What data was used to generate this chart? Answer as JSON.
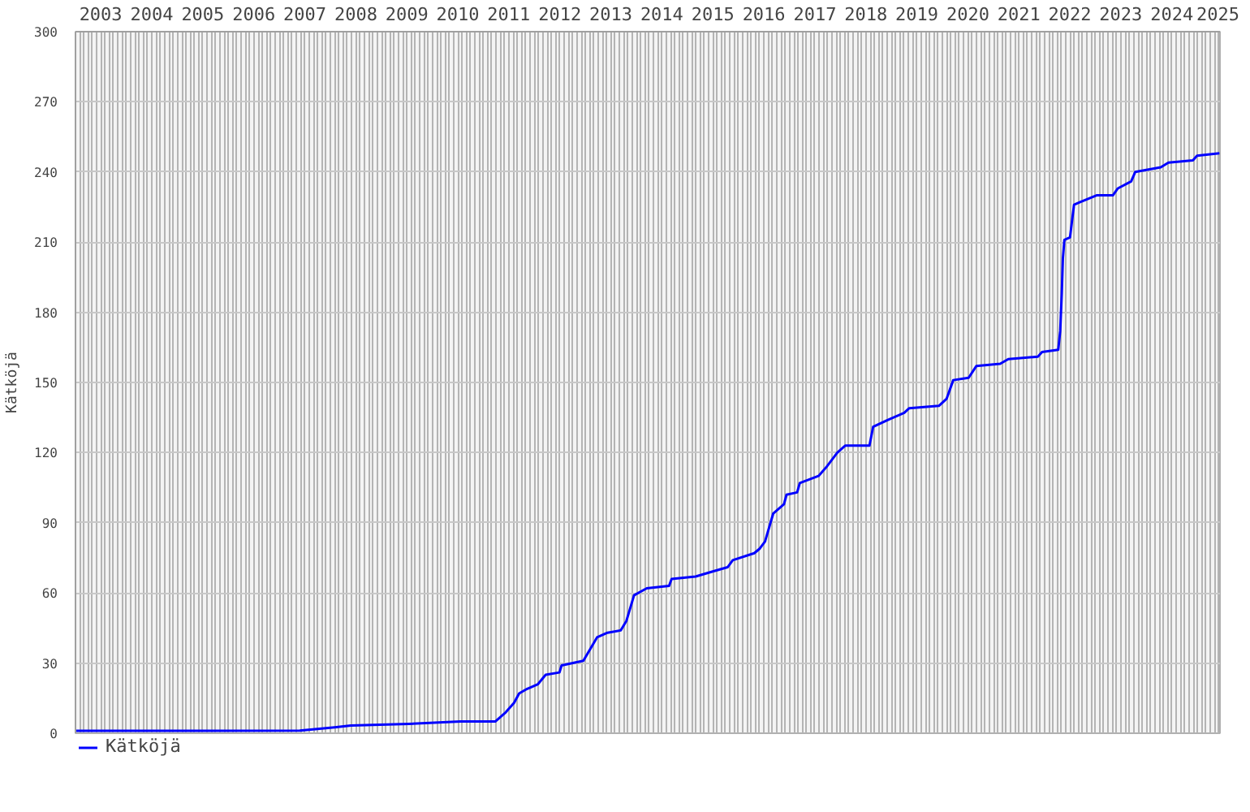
{
  "chart_data": {
    "type": "line",
    "ylabel": "Kätköjä",
    "x": [
      "2003-01-01",
      "2005-07-01",
      "2007-05-26",
      "2008-01-30",
      "2008-05-26",
      "2009-07-16",
      "2010-07-20",
      "2011-03-26",
      "2011-06-10",
      "2011-08-08",
      "2011-09-13",
      "2011-11-10",
      "2012-01-26",
      "2012-03-21",
      "2012-06-28",
      "2012-07-13",
      "2012-12-16",
      "2013-03-24",
      "2013-06-07",
      "2013-09-10",
      "2013-10-20",
      "2013-12-14",
      "2014-03-15",
      "2014-08-22",
      "2014-09-09",
      "2015-02-28",
      "2015-06-21",
      "2015-10-15",
      "2015-11-21",
      "2016-04-23",
      "2016-06-02",
      "2016-07-09",
      "2016-09-06",
      "2016-11-22",
      "2016-12-10",
      "2017-02-24",
      "2017-03-15",
      "2017-07-27",
      "2017-09-24",
      "2017-12-09",
      "2018-02-03",
      "2018-07-27",
      "2018-08-22",
      "2018-12-06",
      "2019-04-02",
      "2019-05-08",
      "2019-12-06",
      "2020-01-30",
      "2020-03-18",
      "2020-07-06",
      "2020-08-30",
      "2021-02-17",
      "2021-04-16",
      "2021-11-14",
      "2021-12-14",
      "2022-04-09",
      "2022-04-23",
      "2022-05-04",
      "2022-05-12",
      "2022-05-23",
      "2022-07-02",
      "2022-07-31",
      "2022-09-09",
      "2023-01-08",
      "2023-05-05",
      "2023-06-10",
      "2023-09-13",
      "2023-10-12",
      "2024-04-12",
      "2024-06-06",
      "2024-11-28",
      "2024-12-28",
      "2025-06-06"
    ],
    "series": [
      {
        "name": "Kätköjä",
        "color": "#0000ff",
        "values": [
          1,
          1,
          1.1,
          2.5,
          3.3,
          4,
          5,
          5,
          9,
          13,
          17,
          19,
          21,
          25,
          26,
          29,
          31,
          41,
          43,
          44,
          48,
          59,
          62,
          63,
          66,
          67,
          69,
          71,
          74,
          77,
          79,
          82,
          94,
          98,
          102,
          103,
          107,
          110,
          114,
          120,
          123,
          123,
          131,
          134,
          137,
          139,
          140,
          143,
          151,
          152,
          157,
          158,
          160,
          161,
          163,
          164,
          172,
          188,
          203,
          211,
          212,
          226,
          227,
          230,
          230,
          233,
          236,
          240,
          242,
          244,
          245,
          247,
          248
        ]
      }
    ],
    "xlim": [
      "2003-01-01",
      "2025-06-10"
    ],
    "ylim": [
      0,
      300
    ],
    "yticks": [
      0,
      30,
      60,
      90,
      120,
      150,
      180,
      210,
      240,
      270,
      300
    ],
    "xticks": [
      {
        "value": "2003-01",
        "label": null
      },
      {
        "value": "2003-02",
        "label": null
      },
      {
        "value": "2003-03",
        "label": null
      },
      {
        "value": "2003-04",
        "label": null
      },
      {
        "value": "2003-05",
        "label": null
      },
      {
        "value": "2003-06",
        "label": null
      },
      {
        "value": "2003-07",
        "label": "2003"
      },
      {
        "value": "2003-08",
        "label": null
      },
      {
        "value": "2003-09",
        "label": null
      },
      {
        "value": "2003-10",
        "label": null
      },
      {
        "value": "2003-11",
        "label": null
      },
      {
        "value": "2003-12",
        "label": null
      },
      {
        "value": "2004-01",
        "label": null
      },
      {
        "value": "2004-02",
        "label": null
      },
      {
        "value": "2004-03",
        "label": null
      },
      {
        "value": "2004-04",
        "label": null
      },
      {
        "value": "2004-05",
        "label": null
      },
      {
        "value": "2004-06",
        "label": null
      },
      {
        "value": "2004-07",
        "label": "2004"
      },
      {
        "value": "2004-08",
        "label": null
      },
      {
        "value": "2004-09",
        "label": null
      },
      {
        "value": "2004-10",
        "label": null
      },
      {
        "value": "2004-11",
        "label": null
      },
      {
        "value": "2004-12",
        "label": null
      },
      {
        "value": "2005-01",
        "label": null
      },
      {
        "value": "2005-02",
        "label": null
      },
      {
        "value": "2005-03",
        "label": null
      },
      {
        "value": "2005-04",
        "label": null
      },
      {
        "value": "2005-05",
        "label": null
      },
      {
        "value": "2005-06",
        "label": null
      },
      {
        "value": "2005-07",
        "label": "2005"
      },
      {
        "value": "2005-08",
        "label": null
      },
      {
        "value": "2005-09",
        "label": null
      },
      {
        "value": "2005-10",
        "label": null
      },
      {
        "value": "2005-11",
        "label": null
      },
      {
        "value": "2005-12",
        "label": null
      },
      {
        "value": "2006-01",
        "label": null
      },
      {
        "value": "2006-02",
        "label": null
      },
      {
        "value": "2006-03",
        "label": null
      },
      {
        "value": "2006-04",
        "label": null
      },
      {
        "value": "2006-05",
        "label": null
      },
      {
        "value": "2006-06",
        "label": null
      },
      {
        "value": "2006-07",
        "label": "2006"
      },
      {
        "value": "2006-08",
        "label": null
      },
      {
        "value": "2006-09",
        "label": null
      },
      {
        "value": "2006-10",
        "label": null
      },
      {
        "value": "2006-11",
        "label": null
      },
      {
        "value": "2006-12",
        "label": null
      },
      {
        "value": "2007-01",
        "label": null
      },
      {
        "value": "2007-02",
        "label": null
      },
      {
        "value": "2007-03",
        "label": null
      },
      {
        "value": "2007-04",
        "label": null
      },
      {
        "value": "2007-05",
        "label": null
      },
      {
        "value": "2007-06",
        "label": null
      },
      {
        "value": "2007-07",
        "label": "2007"
      },
      {
        "value": "2007-08",
        "label": null
      },
      {
        "value": "2007-09",
        "label": null
      },
      {
        "value": "2007-10",
        "label": null
      },
      {
        "value": "2007-11",
        "label": null
      },
      {
        "value": "2007-12",
        "label": null
      },
      {
        "value": "2008-01",
        "label": null
      },
      {
        "value": "2008-02",
        "label": null
      },
      {
        "value": "2008-03",
        "label": null
      },
      {
        "value": "2008-04",
        "label": null
      },
      {
        "value": "2008-05",
        "label": null
      },
      {
        "value": "2008-06",
        "label": null
      },
      {
        "value": "2008-07",
        "label": "2008"
      },
      {
        "value": "2008-08",
        "label": null
      },
      {
        "value": "2008-09",
        "label": null
      },
      {
        "value": "2008-10",
        "label": null
      },
      {
        "value": "2008-11",
        "label": null
      },
      {
        "value": "2008-12",
        "label": null
      },
      {
        "value": "2009-01",
        "label": null
      },
      {
        "value": "2009-02",
        "label": null
      },
      {
        "value": "2009-03",
        "label": null
      },
      {
        "value": "2009-04",
        "label": null
      },
      {
        "value": "2009-05",
        "label": null
      },
      {
        "value": "2009-06",
        "label": null
      },
      {
        "value": "2009-07",
        "label": "2009"
      },
      {
        "value": "2009-08",
        "label": null
      },
      {
        "value": "2009-09",
        "label": null
      },
      {
        "value": "2009-10",
        "label": null
      },
      {
        "value": "2009-11",
        "label": null
      },
      {
        "value": "2009-12",
        "label": null
      },
      {
        "value": "2010-01",
        "label": null
      },
      {
        "value": "2010-02",
        "label": null
      },
      {
        "value": "2010-03",
        "label": null
      },
      {
        "value": "2010-04",
        "label": null
      },
      {
        "value": "2010-05",
        "label": null
      },
      {
        "value": "2010-06",
        "label": null
      },
      {
        "value": "2010-07",
        "label": "2010"
      },
      {
        "value": "2010-08",
        "label": null
      },
      {
        "value": "2010-09",
        "label": null
      },
      {
        "value": "2010-10",
        "label": null
      },
      {
        "value": "2010-11",
        "label": null
      },
      {
        "value": "2010-12",
        "label": null
      },
      {
        "value": "2011-01",
        "label": null
      },
      {
        "value": "2011-02",
        "label": null
      },
      {
        "value": "2011-03",
        "label": null
      },
      {
        "value": "2011-04",
        "label": null
      },
      {
        "value": "2011-05",
        "label": null
      },
      {
        "value": "2011-06",
        "label": null
      },
      {
        "value": "2011-07",
        "label": "2011"
      },
      {
        "value": "2011-08",
        "label": null
      },
      {
        "value": "2011-09",
        "label": null
      },
      {
        "value": "2011-10",
        "label": null
      },
      {
        "value": "2011-11",
        "label": null
      },
      {
        "value": "2011-12",
        "label": null
      },
      {
        "value": "2012-01",
        "label": null
      },
      {
        "value": "2012-02",
        "label": null
      },
      {
        "value": "2012-03",
        "label": null
      },
      {
        "value": "2012-04",
        "label": null
      },
      {
        "value": "2012-05",
        "label": null
      },
      {
        "value": "2012-06",
        "label": null
      },
      {
        "value": "2012-07",
        "label": "2012"
      },
      {
        "value": "2012-08",
        "label": null
      },
      {
        "value": "2012-09",
        "label": null
      },
      {
        "value": "2012-10",
        "label": null
      },
      {
        "value": "2012-11",
        "label": null
      },
      {
        "value": "2012-12",
        "label": null
      },
      {
        "value": "2013-01",
        "label": null
      },
      {
        "value": "2013-02",
        "label": null
      },
      {
        "value": "2013-03",
        "label": null
      },
      {
        "value": "2013-04",
        "label": null
      },
      {
        "value": "2013-05",
        "label": null
      },
      {
        "value": "2013-06",
        "label": null
      },
      {
        "value": "2013-07",
        "label": "2013"
      },
      {
        "value": "2013-08",
        "label": null
      },
      {
        "value": "2013-09",
        "label": null
      },
      {
        "value": "2013-10",
        "label": null
      },
      {
        "value": "2013-11",
        "label": null
      },
      {
        "value": "2013-12",
        "label": null
      },
      {
        "value": "2014-01",
        "label": null
      },
      {
        "value": "2014-02",
        "label": null
      },
      {
        "value": "2014-03",
        "label": null
      },
      {
        "value": "2014-04",
        "label": null
      },
      {
        "value": "2014-05",
        "label": null
      },
      {
        "value": "2014-06",
        "label": null
      },
      {
        "value": "2014-07",
        "label": "2014"
      },
      {
        "value": "2014-08",
        "label": null
      },
      {
        "value": "2014-09",
        "label": null
      },
      {
        "value": "2014-10",
        "label": null
      },
      {
        "value": "2014-11",
        "label": null
      },
      {
        "value": "2014-12",
        "label": null
      },
      {
        "value": "2015-01",
        "label": null
      },
      {
        "value": "2015-02",
        "label": null
      },
      {
        "value": "2015-03",
        "label": null
      },
      {
        "value": "2015-04",
        "label": null
      },
      {
        "value": "2015-05",
        "label": null
      },
      {
        "value": "2015-06",
        "label": null
      },
      {
        "value": "2015-07",
        "label": "2015"
      },
      {
        "value": "2015-08",
        "label": null
      },
      {
        "value": "2015-09",
        "label": null
      },
      {
        "value": "2015-10",
        "label": null
      },
      {
        "value": "2015-11",
        "label": null
      },
      {
        "value": "2015-12",
        "label": null
      },
      {
        "value": "2016-01",
        "label": null
      },
      {
        "value": "2016-02",
        "label": null
      },
      {
        "value": "2016-03",
        "label": null
      },
      {
        "value": "2016-04",
        "label": null
      },
      {
        "value": "2016-05",
        "label": null
      },
      {
        "value": "2016-06",
        "label": null
      },
      {
        "value": "2016-07",
        "label": "2016"
      },
      {
        "value": "2016-08",
        "label": null
      },
      {
        "value": "2016-09",
        "label": null
      },
      {
        "value": "2016-10",
        "label": null
      },
      {
        "value": "2016-11",
        "label": null
      },
      {
        "value": "2016-12",
        "label": null
      },
      {
        "value": "2017-01",
        "label": null
      },
      {
        "value": "2017-02",
        "label": null
      },
      {
        "value": "2017-03",
        "label": null
      },
      {
        "value": "2017-04",
        "label": null
      },
      {
        "value": "2017-05",
        "label": null
      },
      {
        "value": "2017-06",
        "label": null
      },
      {
        "value": "2017-07",
        "label": "2017"
      },
      {
        "value": "2017-08",
        "label": null
      },
      {
        "value": "2017-09",
        "label": null
      },
      {
        "value": "2017-10",
        "label": null
      },
      {
        "value": "2017-11",
        "label": null
      },
      {
        "value": "2017-12",
        "label": null
      },
      {
        "value": "2018-01",
        "label": null
      },
      {
        "value": "2018-02",
        "label": null
      },
      {
        "value": "2018-03",
        "label": null
      },
      {
        "value": "2018-04",
        "label": null
      },
      {
        "value": "2018-05",
        "label": null
      },
      {
        "value": "2018-06",
        "label": null
      },
      {
        "value": "2018-07",
        "label": "2018"
      },
      {
        "value": "2018-08",
        "label": null
      },
      {
        "value": "2018-09",
        "label": null
      },
      {
        "value": "2018-10",
        "label": null
      },
      {
        "value": "2018-11",
        "label": null
      },
      {
        "value": "2018-12",
        "label": null
      },
      {
        "value": "2019-01",
        "label": null
      },
      {
        "value": "2019-02",
        "label": null
      },
      {
        "value": "2019-03",
        "label": null
      },
      {
        "value": "2019-04",
        "label": null
      },
      {
        "value": "2019-05",
        "label": null
      },
      {
        "value": "2019-06",
        "label": null
      },
      {
        "value": "2019-07",
        "label": "2019"
      },
      {
        "value": "2019-08",
        "label": null
      },
      {
        "value": "2019-09",
        "label": null
      },
      {
        "value": "2019-10",
        "label": null
      },
      {
        "value": "2019-11",
        "label": null
      },
      {
        "value": "2019-12",
        "label": null
      },
      {
        "value": "2020-01",
        "label": null
      },
      {
        "value": "2020-02",
        "label": null
      },
      {
        "value": "2020-03",
        "label": null
      },
      {
        "value": "2020-04",
        "label": null
      },
      {
        "value": "2020-05",
        "label": null
      },
      {
        "value": "2020-06",
        "label": null
      },
      {
        "value": "2020-07",
        "label": "2020"
      },
      {
        "value": "2020-08",
        "label": null
      },
      {
        "value": "2020-09",
        "label": null
      },
      {
        "value": "2020-10",
        "label": null
      },
      {
        "value": "2020-11",
        "label": null
      },
      {
        "value": "2020-12",
        "label": null
      },
      {
        "value": "2021-01",
        "label": null
      },
      {
        "value": "2021-02",
        "label": null
      },
      {
        "value": "2021-03",
        "label": null
      },
      {
        "value": "2021-04",
        "label": null
      },
      {
        "value": "2021-05",
        "label": null
      },
      {
        "value": "2021-06",
        "label": null
      },
      {
        "value": "2021-07",
        "label": "2021"
      },
      {
        "value": "2021-08",
        "label": null
      },
      {
        "value": "2021-09",
        "label": null
      },
      {
        "value": "2021-10",
        "label": null
      },
      {
        "value": "2021-11",
        "label": null
      },
      {
        "value": "2021-12",
        "label": null
      },
      {
        "value": "2022-01",
        "label": null
      },
      {
        "value": "2022-02",
        "label": null
      },
      {
        "value": "2022-03",
        "label": null
      },
      {
        "value": "2022-04",
        "label": null
      },
      {
        "value": "2022-05",
        "label": null
      },
      {
        "value": "2022-06",
        "label": null
      },
      {
        "value": "2022-07",
        "label": "2022"
      },
      {
        "value": "2022-08",
        "label": null
      },
      {
        "value": "2022-09",
        "label": null
      },
      {
        "value": "2022-10",
        "label": null
      },
      {
        "value": "2022-11",
        "label": null
      },
      {
        "value": "2022-12",
        "label": null
      },
      {
        "value": "2023-01",
        "label": null
      },
      {
        "value": "2023-02",
        "label": null
      },
      {
        "value": "2023-03",
        "label": null
      },
      {
        "value": "2023-04",
        "label": null
      },
      {
        "value": "2023-05",
        "label": null
      },
      {
        "value": "2023-06",
        "label": null
      },
      {
        "value": "2023-07",
        "label": "2023"
      },
      {
        "value": "2023-08",
        "label": null
      },
      {
        "value": "2023-09",
        "label": null
      },
      {
        "value": "2023-10",
        "label": null
      },
      {
        "value": "2023-11",
        "label": null
      },
      {
        "value": "2023-12",
        "label": null
      },
      {
        "value": "2024-01",
        "label": null
      },
      {
        "value": "2024-02",
        "label": null
      },
      {
        "value": "2024-03",
        "label": null
      },
      {
        "value": "2024-04",
        "label": null
      },
      {
        "value": "2024-05",
        "label": null
      },
      {
        "value": "2024-06",
        "label": null
      },
      {
        "value": "2024-07",
        "label": "2024"
      },
      {
        "value": "2024-08",
        "label": null
      },
      {
        "value": "2024-09",
        "label": null
      },
      {
        "value": "2024-10",
        "label": null
      },
      {
        "value": "2024-11",
        "label": null
      },
      {
        "value": "2024-12",
        "label": null
      },
      {
        "value": "2025-01",
        "label": null
      },
      {
        "value": "2025-02",
        "label": null
      },
      {
        "value": "2025-03",
        "label": null
      },
      {
        "value": "2025-04",
        "label": null
      },
      {
        "value": "2025-05",
        "label": null
      },
      {
        "value": "2025-06",
        "label": "2025"
      }
    ],
    "grid": true,
    "legend": "bottom left",
    "line_style": "solid",
    "marker": "none"
  }
}
